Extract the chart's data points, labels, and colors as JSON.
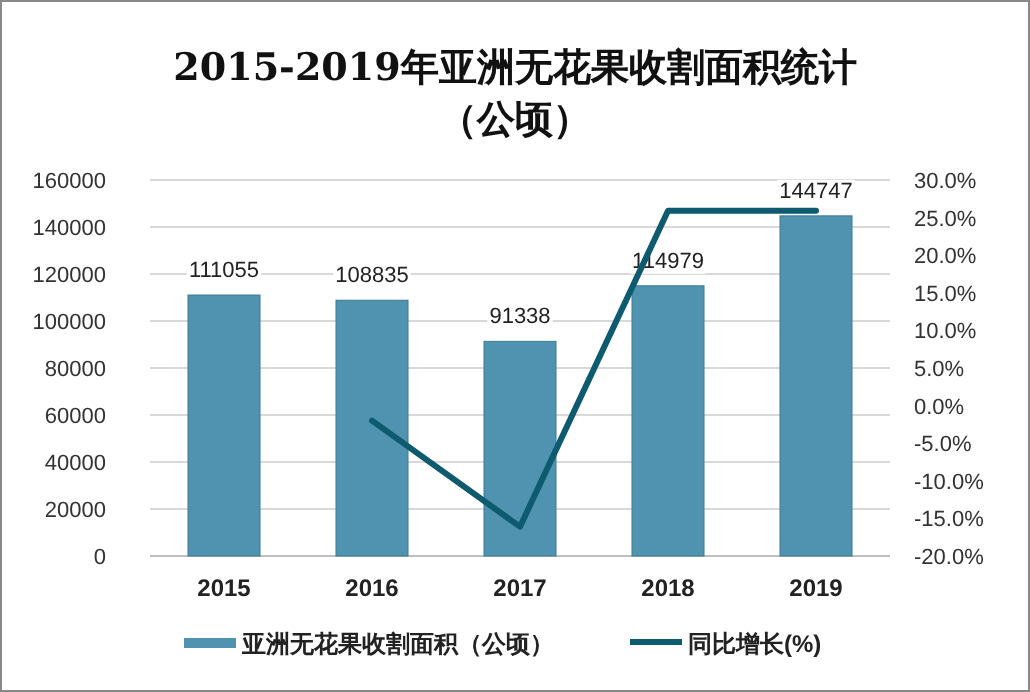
{
  "chart_data": {
    "type": "bar",
    "title": "2015-2019年亚洲无花果收割面积统计",
    "subtitle": "（公顷）",
    "categories": [
      "2015",
      "2016",
      "2017",
      "2018",
      "2019"
    ],
    "series": [
      {
        "name": "亚洲无花果收割面积（公顷）",
        "color": "#4f93b0",
        "values": [
          111055,
          108835,
          91338,
          114979,
          144747
        ],
        "value_labels": [
          "111055",
          "108835",
          "91338",
          "114979",
          "144747"
        ]
      },
      {
        "name": "同比增长(%)",
        "type": "line",
        "axis": "y2",
        "color": "#0e5a6e",
        "values": [
          null,
          -2.0,
          -16.1,
          25.9,
          25.9
        ]
      }
    ],
    "ylim": [
      0,
      160000
    ],
    "yticks": [
      0,
      20000,
      40000,
      60000,
      80000,
      100000,
      120000,
      140000,
      160000
    ],
    "y2lim": [
      -20,
      30
    ],
    "y2ticks": [
      {
        "value": -20,
        "label": "-20.0%"
      },
      {
        "value": -15,
        "label": "-15.0%"
      },
      {
        "value": -10,
        "label": "-10.0%"
      },
      {
        "value": -5,
        "label": "-5.0%"
      },
      {
        "value": 0,
        "label": "0.0%"
      },
      {
        "value": 5,
        "label": "5.0%"
      },
      {
        "value": 10,
        "label": "10.0%"
      },
      {
        "value": 15,
        "label": "15.0%"
      },
      {
        "value": 20,
        "label": "20.0%"
      },
      {
        "value": 25,
        "label": "25.0%"
      },
      {
        "value": 30,
        "label": "30.0%"
      }
    ],
    "grid": "y",
    "legend": "bottom",
    "marker": "none",
    "line_style": "solid"
  }
}
